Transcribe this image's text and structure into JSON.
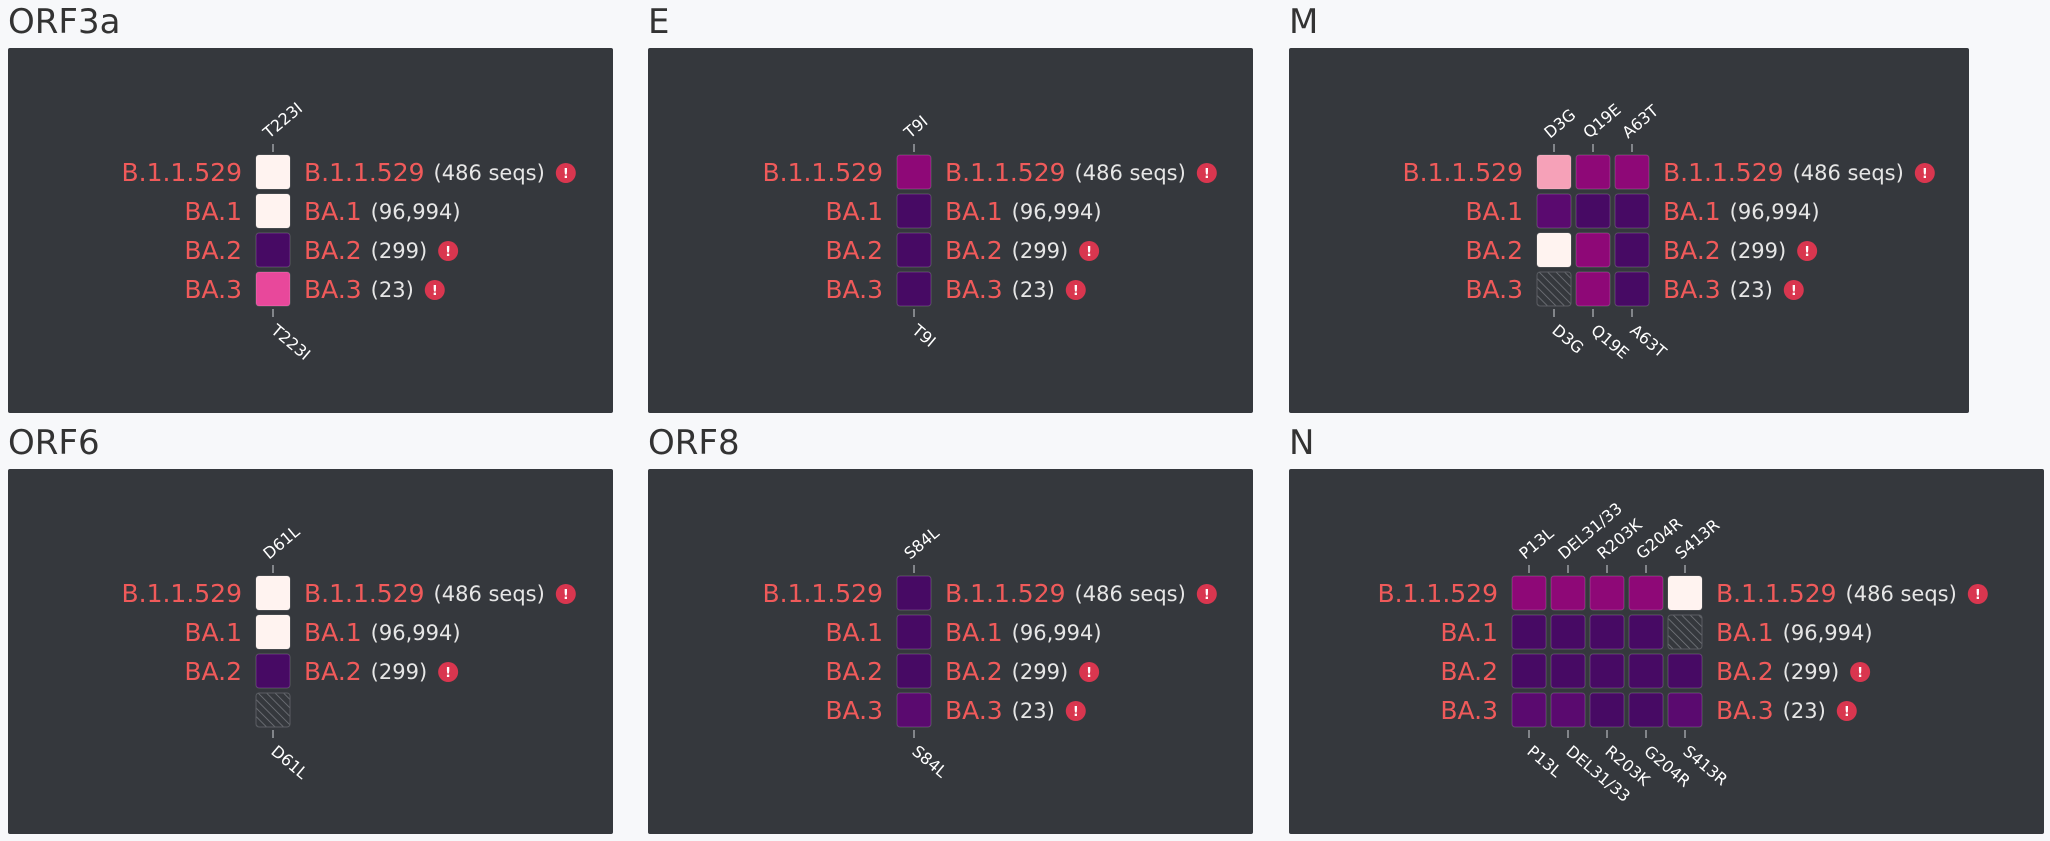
{
  "colors": {
    "panel_bg": "#35383d",
    "lineage_text": "#f05a5a",
    "warning": "#d9364f",
    "c_white": "#fff3f0",
    "c_light_pink": "#f6a1b8",
    "c_pink": "#e8489b",
    "c_magenta": "#8e0877",
    "c_purple": "#5a0a6f",
    "c_dark_purple": "#470a64",
    "c_missing": "hatched"
  },
  "chart_data": [
    {
      "id": "orf3a",
      "type": "heatmap",
      "title": "ORF3a",
      "mutations": [
        "T223I"
      ],
      "rows": [
        {
          "lineage": "B.1.1.529",
          "label": "B.1.1.529",
          "count": "(486 seqs)",
          "warning": true,
          "cells": [
            "c_white"
          ]
        },
        {
          "lineage": "BA.1",
          "label": "BA.1",
          "count": "(96,994)",
          "warning": false,
          "cells": [
            "c_white"
          ]
        },
        {
          "lineage": "BA.2",
          "label": "BA.2",
          "count": "(299)",
          "warning": true,
          "cells": [
            "c_dark_purple"
          ]
        },
        {
          "lineage": "BA.3",
          "label": "BA.3",
          "count": "(23)",
          "warning": true,
          "cells": [
            "c_pink"
          ]
        }
      ]
    },
    {
      "id": "e",
      "type": "heatmap",
      "title": "E",
      "mutations": [
        "T9I"
      ],
      "rows": [
        {
          "lineage": "B.1.1.529",
          "label": "B.1.1.529",
          "count": "(486 seqs)",
          "warning": true,
          "cells": [
            "c_magenta"
          ]
        },
        {
          "lineage": "BA.1",
          "label": "BA.1",
          "count": "(96,994)",
          "warning": false,
          "cells": [
            "c_dark_purple"
          ]
        },
        {
          "lineage": "BA.2",
          "label": "BA.2",
          "count": "(299)",
          "warning": true,
          "cells": [
            "c_dark_purple"
          ]
        },
        {
          "lineage": "BA.3",
          "label": "BA.3",
          "count": "(23)",
          "warning": true,
          "cells": [
            "c_dark_purple"
          ]
        }
      ]
    },
    {
      "id": "m",
      "type": "heatmap",
      "title": "M",
      "mutations": [
        "D3G",
        "Q19E",
        "A63T"
      ],
      "rows": [
        {
          "lineage": "B.1.1.529",
          "label": "B.1.1.529",
          "count": "(486 seqs)",
          "warning": true,
          "cells": [
            "c_light_pink",
            "c_magenta",
            "c_magenta"
          ]
        },
        {
          "lineage": "BA.1",
          "label": "BA.1",
          "count": "(96,994)",
          "warning": false,
          "cells": [
            "c_purple",
            "c_dark_purple",
            "c_dark_purple"
          ]
        },
        {
          "lineage": "BA.2",
          "label": "BA.2",
          "count": "(299)",
          "warning": true,
          "cells": [
            "c_white",
            "c_magenta",
            "c_dark_purple"
          ]
        },
        {
          "lineage": "BA.3",
          "label": "BA.3",
          "count": "(23)",
          "warning": true,
          "cells": [
            "c_missing",
            "c_magenta",
            "c_dark_purple"
          ]
        }
      ]
    },
    {
      "id": "orf6",
      "type": "heatmap",
      "title": "ORF6",
      "mutations": [
        "D61L"
      ],
      "rows": [
        {
          "lineage": "B.1.1.529",
          "label": "B.1.1.529",
          "count": "(486 seqs)",
          "warning": true,
          "cells": [
            "c_white"
          ]
        },
        {
          "lineage": "BA.1",
          "label": "BA.1",
          "count": "(96,994)",
          "warning": false,
          "cells": [
            "c_white"
          ]
        },
        {
          "lineage": "BA.2",
          "label": "BA.2",
          "count": "(299)",
          "warning": true,
          "cells": [
            "c_dark_purple"
          ]
        },
        {
          "lineage": "",
          "label": "",
          "count": "",
          "warning": false,
          "cells": [
            "c_missing"
          ]
        }
      ]
    },
    {
      "id": "orf8",
      "type": "heatmap",
      "title": "ORF8",
      "mutations": [
        "S84L"
      ],
      "rows": [
        {
          "lineage": "B.1.1.529",
          "label": "B.1.1.529",
          "count": "(486 seqs)",
          "warning": true,
          "cells": [
            "c_dark_purple"
          ]
        },
        {
          "lineage": "BA.1",
          "label": "BA.1",
          "count": "(96,994)",
          "warning": false,
          "cells": [
            "c_dark_purple"
          ]
        },
        {
          "lineage": "BA.2",
          "label": "BA.2",
          "count": "(299)",
          "warning": true,
          "cells": [
            "c_dark_purple"
          ]
        },
        {
          "lineage": "BA.3",
          "label": "BA.3",
          "count": "(23)",
          "warning": true,
          "cells": [
            "c_purple"
          ]
        }
      ]
    },
    {
      "id": "n",
      "type": "heatmap",
      "title": "N",
      "mutations": [
        "P13L",
        "DEL31/33",
        "R203K",
        "G204R",
        "S413R"
      ],
      "rows": [
        {
          "lineage": "B.1.1.529",
          "label": "B.1.1.529",
          "count": "(486 seqs)",
          "warning": true,
          "cells": [
            "c_magenta",
            "c_magenta",
            "c_magenta",
            "c_magenta",
            "c_white"
          ]
        },
        {
          "lineage": "BA.1",
          "label": "BA.1",
          "count": "(96,994)",
          "warning": false,
          "cells": [
            "c_dark_purple",
            "c_dark_purple",
            "c_dark_purple",
            "c_dark_purple",
            "c_missing"
          ]
        },
        {
          "lineage": "BA.2",
          "label": "BA.2",
          "count": "(299)",
          "warning": true,
          "cells": [
            "c_dark_purple",
            "c_dark_purple",
            "c_dark_purple",
            "c_dark_purple",
            "c_dark_purple"
          ]
        },
        {
          "lineage": "BA.3",
          "label": "BA.3",
          "count": "(23)",
          "warning": true,
          "cells": [
            "c_purple",
            "c_purple",
            "c_dark_purple",
            "c_dark_purple",
            "c_purple"
          ]
        }
      ]
    }
  ]
}
